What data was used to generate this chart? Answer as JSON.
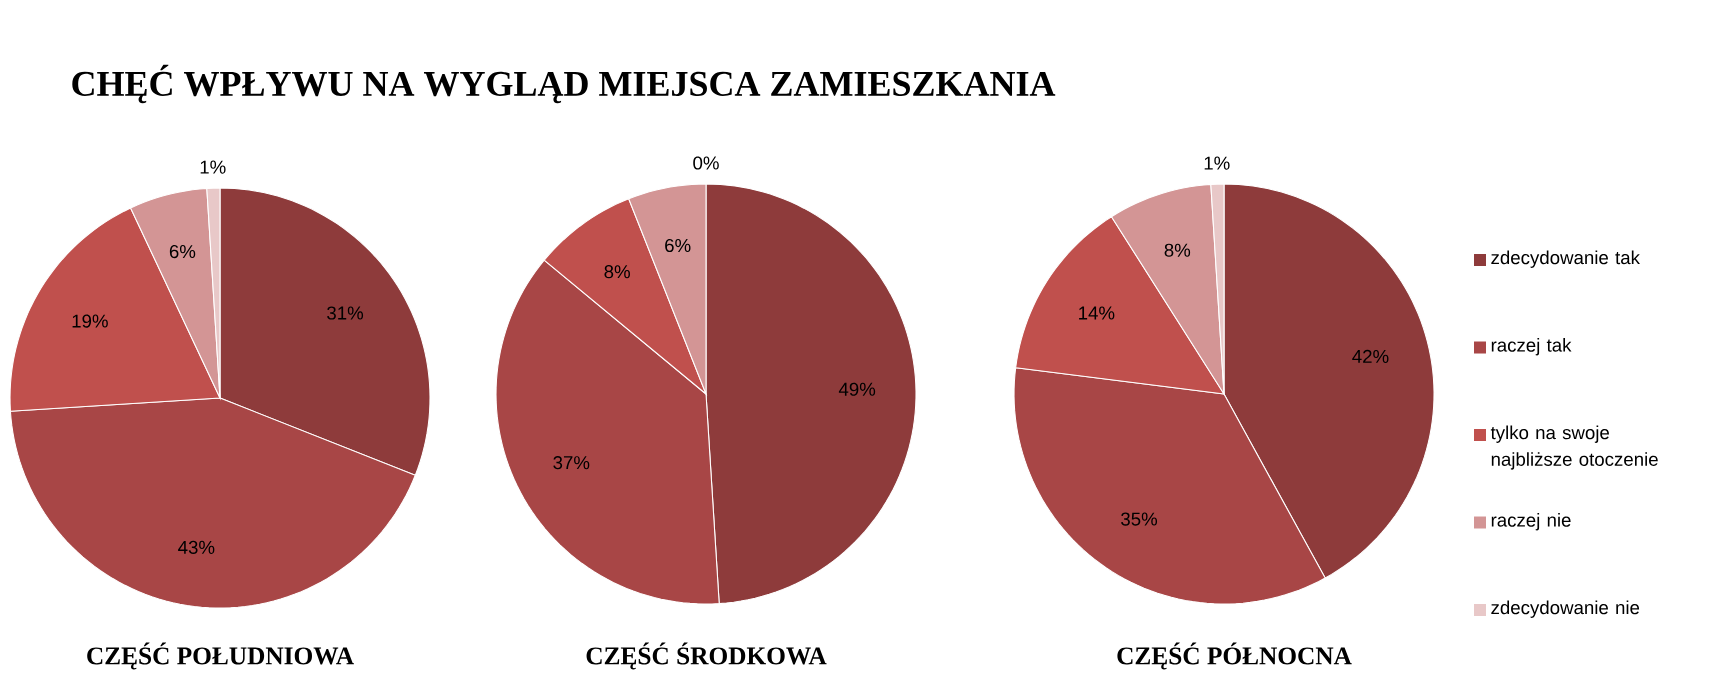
{
  "chart_data": [
    {
      "type": "pie",
      "title": "CHĘĆ WPŁYWU NA WYGLĄD MIEJSCA ZAMIESZKANIA",
      "xlabel": "CZĘŚĆ POŁUDNIOWA",
      "categories": [
        null,
        null,
        null,
        null,
        null
      ],
      "values": [
        31,
        43,
        19,
        6,
        1
      ],
      "value_labels": [
        "31%",
        "43%",
        "19%",
        "6%",
        "1%"
      ],
      "colors": [
        "#8e3b3b",
        "#a84646",
        "#c0504d",
        "#d39595",
        "#e8c8c8"
      ]
    },
    {
      "type": "pie",
      "xlabel": "CZĘŚĆ ŚRODKOWA",
      "categories": [
        null,
        null,
        null,
        null,
        null
      ],
      "values": [
        49,
        37,
        8,
        6,
        0
      ],
      "value_labels": [
        "49%",
        "37%",
        "8%",
        "6%",
        "0%"
      ],
      "colors": [
        "#8e3b3b",
        "#a84646",
        "#c0504d",
        "#d39595",
        "#e8c8c8"
      ]
    },
    {
      "type": "pie",
      "xlabel": "CZĘŚĆ PÓŁNOCNA",
      "legend": "right",
      "categories": [
        "zdecydowanie tak",
        "raczej tak",
        "tylko na swoje najbliższe otoczenie",
        "raczej nie",
        "zdecydowanie nie"
      ],
      "values": [
        42,
        35,
        14,
        8,
        1
      ],
      "value_labels": [
        "42%",
        "35%",
        "14%",
        "8%",
        "1%"
      ],
      "colors": [
        "#8e3b3b",
        "#a84646",
        "#c0504d",
        "#d39595",
        "#e8c8c8"
      ]
    }
  ]
}
